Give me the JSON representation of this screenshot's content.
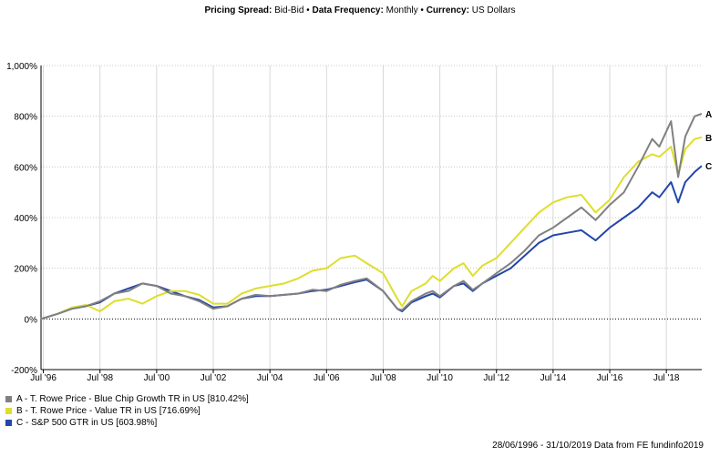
{
  "header": {
    "spread_label": "Pricing Spread:",
    "spread_value": "Bid-Bid",
    "freq_label": "Data Frequency:",
    "freq_value": "Monthly",
    "currency_label": "Currency:",
    "currency_value": "US Dollars",
    "separator": "•"
  },
  "footer": "28/06/1996 - 31/10/2019 Data from FE fundinfo2019",
  "chart_data": {
    "type": "line",
    "ylim": [
      -200,
      1000
    ],
    "yticks": [
      -200,
      0,
      200,
      400,
      600,
      800,
      1000
    ],
    "ytick_labels": [
      "-200%",
      "0%",
      "200%",
      "400%",
      "600%",
      "800%",
      "1,000%"
    ],
    "xticks": [
      "1996-07",
      "1998-07",
      "2000-07",
      "2002-07",
      "2004-07",
      "2006-07",
      "2008-07",
      "2010-07",
      "2012-07",
      "2014-07",
      "2016-07",
      "2018-07"
    ],
    "xtick_labels": [
      "Jul '96",
      "Jul '98",
      "Jul '00",
      "Jul '02",
      "Jul '04",
      "Jul '06",
      "Jul '08",
      "Jul '10",
      "Jul '12",
      "Jul '14",
      "Jul '16",
      "Jul '18"
    ],
    "xlim": [
      "1996-06",
      "2019-10"
    ],
    "grid": true,
    "legend_position": "bottom-left",
    "x": [
      "1996-06",
      "1997-01",
      "1997-07",
      "1998-01",
      "1998-07",
      "1999-01",
      "1999-07",
      "2000-01",
      "2000-07",
      "2001-01",
      "2001-07",
      "2002-01",
      "2002-07",
      "2003-01",
      "2003-07",
      "2004-01",
      "2004-07",
      "2005-01",
      "2005-07",
      "2006-01",
      "2006-07",
      "2007-01",
      "2007-07",
      "2007-12",
      "2008-07",
      "2009-01",
      "2009-03",
      "2009-07",
      "2010-01",
      "2010-04",
      "2010-07",
      "2011-01",
      "2011-05",
      "2011-09",
      "2012-01",
      "2012-07",
      "2013-01",
      "2013-07",
      "2014-01",
      "2014-07",
      "2015-01",
      "2015-07",
      "2016-01",
      "2016-07",
      "2017-01",
      "2017-07",
      "2018-01",
      "2018-04",
      "2018-09",
      "2018-12",
      "2019-03",
      "2019-07",
      "2019-10"
    ],
    "series": [
      {
        "name": "A - T. Rowe Price - Blue Chip Growth TR in US [810.42%]",
        "label": "A",
        "color": "#808080",
        "values": [
          0,
          20,
          40,
          50,
          70,
          100,
          110,
          140,
          130,
          100,
          90,
          70,
          40,
          50,
          80,
          95,
          90,
          95,
          100,
          115,
          110,
          135,
          150,
          160,
          110,
          40,
          35,
          70,
          100,
          110,
          90,
          130,
          150,
          115,
          140,
          180,
          220,
          270,
          330,
          360,
          400,
          440,
          390,
          450,
          500,
          600,
          710,
          680,
          780,
          560,
          720,
          800,
          810
        ]
      },
      {
        "name": "B - T. Rowe Price - Value TR in US [716.69%]",
        "label": "B",
        "color": "#dede2c",
        "values": [
          0,
          20,
          45,
          55,
          30,
          70,
          80,
          60,
          90,
          110,
          110,
          95,
          60,
          60,
          100,
          120,
          130,
          140,
          160,
          190,
          200,
          240,
          250,
          220,
          180,
          80,
          50,
          110,
          140,
          170,
          150,
          200,
          220,
          170,
          210,
          240,
          300,
          360,
          420,
          460,
          480,
          490,
          420,
          470,
          560,
          620,
          650,
          640,
          680,
          570,
          670,
          710,
          717
        ]
      },
      {
        "name": "C - S&P 500 GTR in US [603.98%]",
        "label": "C",
        "color": "#2346a8",
        "values": [
          0,
          20,
          40,
          50,
          65,
          100,
          120,
          140,
          130,
          110,
          90,
          75,
          45,
          50,
          80,
          90,
          90,
          95,
          100,
          110,
          115,
          130,
          145,
          155,
          110,
          40,
          30,
          65,
          90,
          100,
          85,
          130,
          140,
          110,
          140,
          170,
          200,
          250,
          300,
          330,
          340,
          350,
          310,
          360,
          400,
          440,
          500,
          480,
          540,
          460,
          540,
          580,
          604
        ]
      }
    ]
  }
}
